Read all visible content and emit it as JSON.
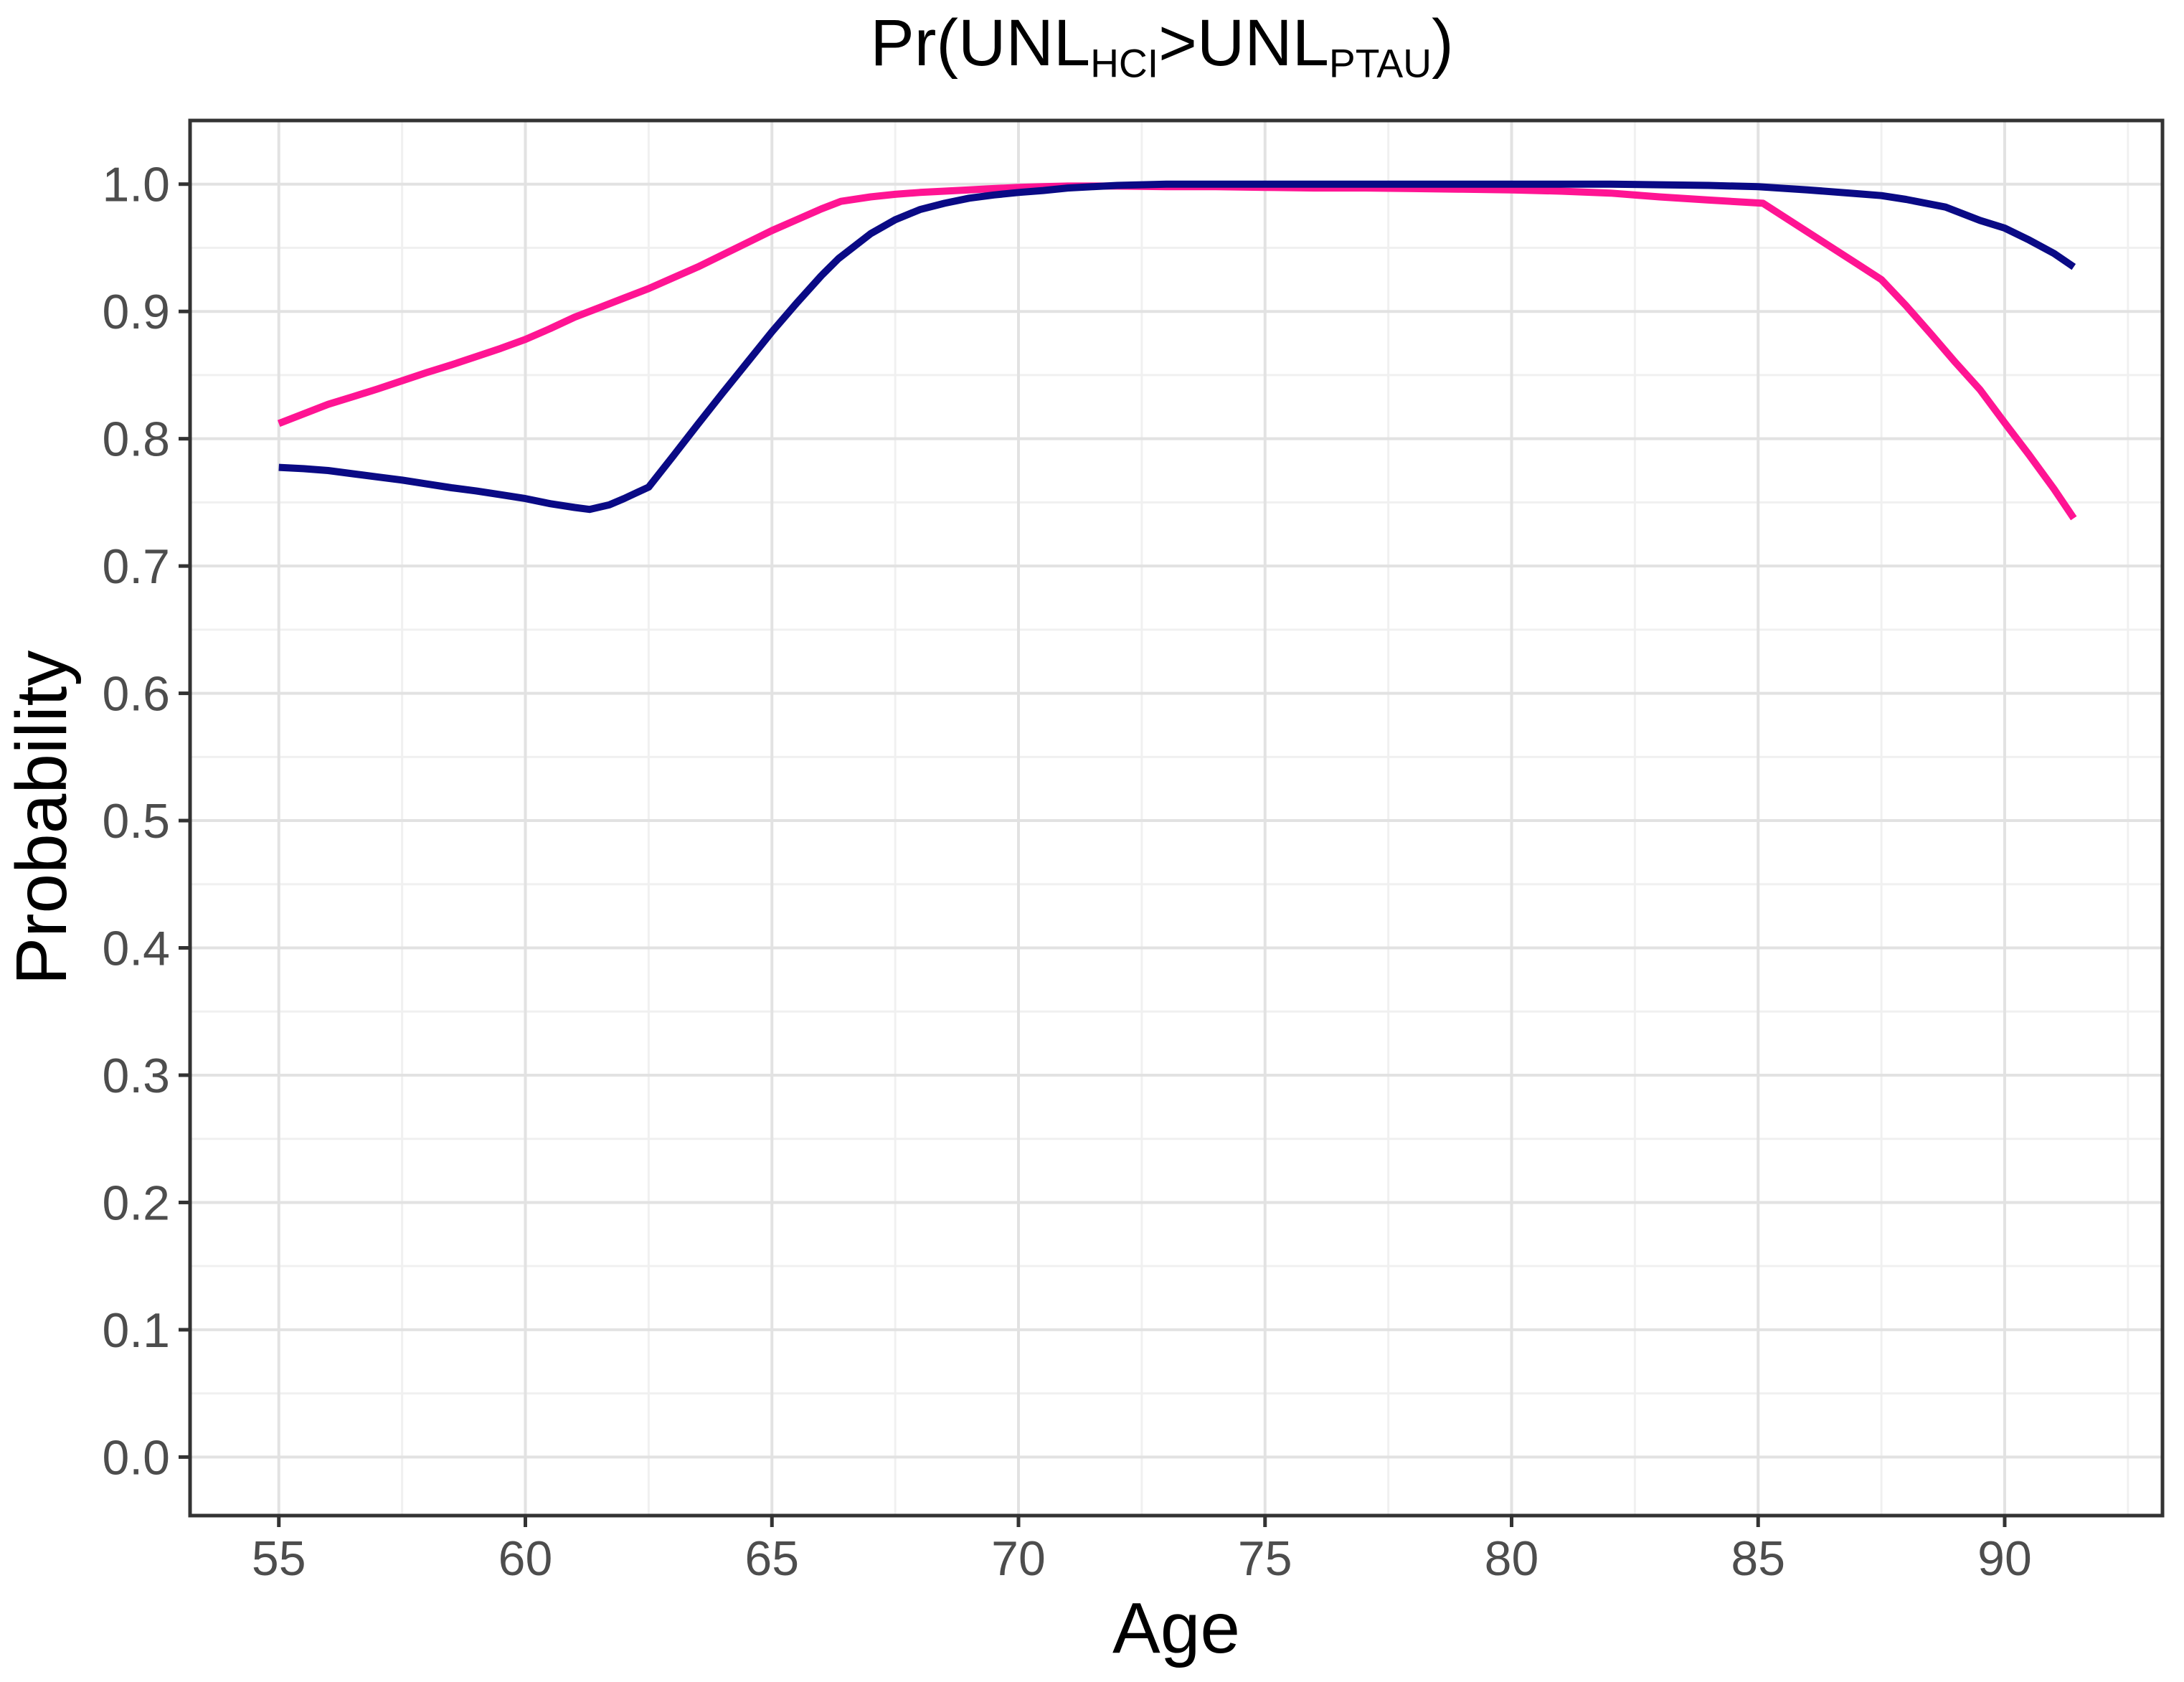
{
  "page": {
    "background": "#FFFFFF"
  },
  "chart_data": {
    "type": "line",
    "title_plain": "Pr(UNL_HCI > UNL_PTAU)",
    "title_parts": [
      {
        "text": "Pr(UNL",
        "sub": false
      },
      {
        "text": "HCI",
        "sub": true
      },
      {
        "text": ">UNL",
        "sub": false
      },
      {
        "text": "PTAU",
        "sub": true
      },
      {
        "text": ")",
        "sub": false
      }
    ],
    "xlabel": "Age",
    "ylabel": "Probability",
    "legend_position": "none",
    "grid": {
      "background": "#FFFFFF",
      "major_color": "#E2E2E2",
      "minor_color": "#F0F0F0",
      "border_color": "#333333",
      "tick_color": "#333333",
      "tick_label_color": "#4D4D4D"
    },
    "x_axis": {
      "domain": [
        53.2,
        93.2
      ],
      "ticks": [
        55,
        60,
        65,
        70,
        75,
        80,
        85,
        90
      ],
      "tick_labels": [
        "55",
        "60",
        "65",
        "70",
        "75",
        "80",
        "85",
        "90"
      ],
      "minor_ticks": [
        57.5,
        62.5,
        67.5,
        72.5,
        77.5,
        82.5,
        87.5,
        92.5
      ]
    },
    "y_axis": {
      "domain": [
        -0.046,
        1.05
      ],
      "ticks": [
        0.0,
        0.1,
        0.2,
        0.3,
        0.4,
        0.5,
        0.6,
        0.7,
        0.8,
        0.9,
        1.0
      ],
      "tick_labels": [
        "0.0",
        "0.1",
        "0.2",
        "0.3",
        "0.4",
        "0.5",
        "0.6",
        "0.7",
        "0.8",
        "0.9",
        "1.0"
      ],
      "minor_ticks": [
        0.05,
        0.15,
        0.25,
        0.35,
        0.45,
        0.55,
        0.65,
        0.75,
        0.85,
        0.95
      ]
    },
    "series": [
      {
        "name": "pink-line",
        "color": "#FF1493",
        "points": [
          [
            55,
            0.812
          ],
          [
            55.5,
            0.8195
          ],
          [
            56,
            0.827
          ],
          [
            56.5,
            0.833
          ],
          [
            57,
            0.839
          ],
          [
            57.5,
            0.8455
          ],
          [
            58,
            0.852
          ],
          [
            58.5,
            0.858
          ],
          [
            59,
            0.8645
          ],
          [
            59.5,
            0.871
          ],
          [
            60,
            0.878
          ],
          [
            60.5,
            0.8865
          ],
          [
            61,
            0.8955
          ],
          [
            61.5,
            0.903
          ],
          [
            62,
            0.9105
          ],
          [
            62.5,
            0.918
          ],
          [
            63,
            0.9265
          ],
          [
            63.5,
            0.935
          ],
          [
            64,
            0.9445
          ],
          [
            64.5,
            0.954
          ],
          [
            65,
            0.9635
          ],
          [
            65.5,
            0.972
          ],
          [
            66,
            0.9805
          ],
          [
            66.4,
            0.9865
          ],
          [
            67,
            0.99
          ],
          [
            67.5,
            0.992
          ],
          [
            68,
            0.9935
          ],
          [
            68.5,
            0.9945
          ],
          [
            69,
            0.9955
          ],
          [
            69.5,
            0.9965
          ],
          [
            70,
            0.9975
          ],
          [
            70.5,
            0.998
          ],
          [
            71,
            0.9985
          ],
          [
            72,
            0.9985
          ],
          [
            73,
            0.998
          ],
          [
            74,
            0.998
          ],
          [
            75,
            0.9975
          ],
          [
            76,
            0.997
          ],
          [
            77,
            0.997
          ],
          [
            78,
            0.9965
          ],
          [
            79,
            0.996
          ],
          [
            80,
            0.9955
          ],
          [
            81,
            0.9945
          ],
          [
            82,
            0.993
          ],
          [
            83,
            0.99
          ],
          [
            84,
            0.9875
          ],
          [
            85.1,
            0.985
          ],
          [
            86,
            0.9625
          ],
          [
            87,
            0.9375
          ],
          [
            87.5,
            0.925
          ],
          [
            88,
            0.9045
          ],
          [
            88.5,
            0.8825
          ],
          [
            89,
            0.86
          ],
          [
            89.5,
            0.8385
          ],
          [
            90,
            0.8125
          ],
          [
            90.5,
            0.787
          ],
          [
            91,
            0.7605
          ],
          [
            91.4,
            0.7375
          ]
        ]
      },
      {
        "name": "navy-line",
        "color": "#0A0A85",
        "points": [
          [
            55,
            0.7775
          ],
          [
            55.5,
            0.7765
          ],
          [
            56,
            0.775
          ],
          [
            56.5,
            0.7725
          ],
          [
            57,
            0.77
          ],
          [
            57.5,
            0.7675
          ],
          [
            58,
            0.7645
          ],
          [
            58.5,
            0.7615
          ],
          [
            59,
            0.759
          ],
          [
            59.5,
            0.756
          ],
          [
            60,
            0.753
          ],
          [
            60.5,
            0.749
          ],
          [
            61,
            0.746
          ],
          [
            61.3,
            0.7445
          ],
          [
            61.7,
            0.748
          ],
          [
            62,
            0.753
          ],
          [
            62.5,
            0.762
          ],
          [
            63,
            0.7865
          ],
          [
            63.5,
            0.8115
          ],
          [
            64,
            0.836
          ],
          [
            64.5,
            0.86
          ],
          [
            65,
            0.884
          ],
          [
            65.5,
            0.9065
          ],
          [
            66,
            0.928
          ],
          [
            66.35,
            0.9415
          ],
          [
            67,
            0.961
          ],
          [
            67.5,
            0.972
          ],
          [
            68,
            0.98
          ],
          [
            68.5,
            0.985
          ],
          [
            69,
            0.989
          ],
          [
            69.5,
            0.9915
          ],
          [
            70,
            0.9935
          ],
          [
            70.5,
            0.995
          ],
          [
            71,
            0.997
          ],
          [
            71.5,
            0.998
          ],
          [
            72,
            0.999
          ],
          [
            72.5,
            0.9995
          ],
          [
            73,
            1.0
          ],
          [
            74,
            1.0
          ],
          [
            75,
            1.0
          ],
          [
            76,
            1.0
          ],
          [
            77,
            1.0
          ],
          [
            78,
            1.0
          ],
          [
            79,
            1.0
          ],
          [
            80,
            1.0
          ],
          [
            81,
            1.0
          ],
          [
            82,
            1.0
          ],
          [
            83,
            0.9995
          ],
          [
            84,
            0.999
          ],
          [
            85,
            0.998
          ],
          [
            86,
            0.9955
          ],
          [
            87,
            0.9925
          ],
          [
            87.5,
            0.991
          ],
          [
            88,
            0.988
          ],
          [
            88.8,
            0.982
          ],
          [
            89.5,
            0.9715
          ],
          [
            90,
            0.9655
          ],
          [
            90.5,
            0.956
          ],
          [
            91,
            0.9455
          ],
          [
            91.4,
            0.935
          ]
        ]
      }
    ]
  }
}
